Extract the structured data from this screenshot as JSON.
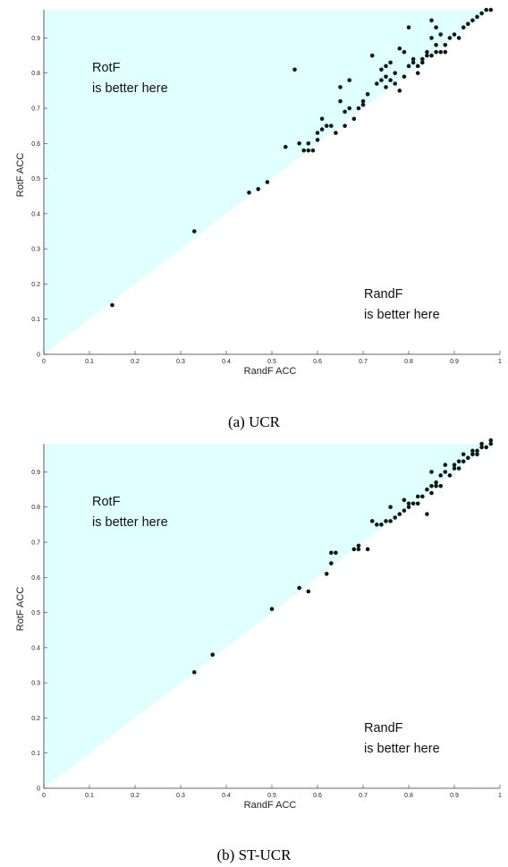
{
  "chart_data": [
    {
      "type": "scatter",
      "caption": "(a) UCR",
      "xlabel": "RandF ACC",
      "ylabel": "RotF ACC",
      "xlim": [
        0,
        1
      ],
      "ylim": [
        0,
        0.98
      ],
      "xticks": [
        "0",
        "0.1",
        "0.2",
        "0.3",
        "0.4",
        "0.5",
        "0.6",
        "0.7",
        "0.8",
        "0.9",
        "1"
      ],
      "yticks": [
        "0",
        "0.1",
        "0.2",
        "0.3",
        "0.4",
        "0.5",
        "0.6",
        "0.7",
        "0.8",
        "0.9"
      ],
      "upper_region_label": [
        "RotF",
        "is better here"
      ],
      "lower_region_label": [
        "RandF",
        "is better here"
      ],
      "shaded_region": "above diagonal",
      "shade_color": "#e0ffff",
      "marker_color": "#0b1a12",
      "grid": false,
      "points": [
        [
          0.15,
          0.14
        ],
        [
          0.33,
          0.35
        ],
        [
          0.45,
          0.46
        ],
        [
          0.47,
          0.47
        ],
        [
          0.49,
          0.49
        ],
        [
          0.53,
          0.59
        ],
        [
          0.55,
          0.81
        ],
        [
          0.56,
          0.6
        ],
        [
          0.57,
          0.58
        ],
        [
          0.58,
          0.58
        ],
        [
          0.58,
          0.6
        ],
        [
          0.59,
          0.58
        ],
        [
          0.6,
          0.61
        ],
        [
          0.6,
          0.63
        ],
        [
          0.61,
          0.64
        ],
        [
          0.61,
          0.67
        ],
        [
          0.62,
          0.65
        ],
        [
          0.63,
          0.65
        ],
        [
          0.64,
          0.63
        ],
        [
          0.65,
          0.76
        ],
        [
          0.65,
          0.72
        ],
        [
          0.66,
          0.69
        ],
        [
          0.66,
          0.65
        ],
        [
          0.67,
          0.78
        ],
        [
          0.67,
          0.7
        ],
        [
          0.68,
          0.67
        ],
        [
          0.69,
          0.7
        ],
        [
          0.7,
          0.72
        ],
        [
          0.7,
          0.71
        ],
        [
          0.71,
          0.74
        ],
        [
          0.72,
          0.85
        ],
        [
          0.73,
          0.77
        ],
        [
          0.74,
          0.81
        ],
        [
          0.74,
          0.78
        ],
        [
          0.75,
          0.76
        ],
        [
          0.75,
          0.79
        ],
        [
          0.75,
          0.82
        ],
        [
          0.76,
          0.83
        ],
        [
          0.76,
          0.78
        ],
        [
          0.77,
          0.77
        ],
        [
          0.77,
          0.8
        ],
        [
          0.78,
          0.75
        ],
        [
          0.78,
          0.87
        ],
        [
          0.79,
          0.79
        ],
        [
          0.79,
          0.86
        ],
        [
          0.8,
          0.93
        ],
        [
          0.8,
          0.82
        ],
        [
          0.81,
          0.83
        ],
        [
          0.81,
          0.84
        ],
        [
          0.82,
          0.8
        ],
        [
          0.82,
          0.82
        ],
        [
          0.83,
          0.84
        ],
        [
          0.83,
          0.83
        ],
        [
          0.84,
          0.86
        ],
        [
          0.84,
          0.85
        ],
        [
          0.85,
          0.85
        ],
        [
          0.85,
          0.9
        ],
        [
          0.85,
          0.95
        ],
        [
          0.86,
          0.93
        ],
        [
          0.86,
          0.88
        ],
        [
          0.86,
          0.86
        ],
        [
          0.87,
          0.91
        ],
        [
          0.87,
          0.86
        ],
        [
          0.88,
          0.86
        ],
        [
          0.88,
          0.88
        ],
        [
          0.89,
          0.9
        ],
        [
          0.9,
          0.91
        ],
        [
          0.91,
          0.9
        ],
        [
          0.92,
          0.93
        ],
        [
          0.93,
          0.94
        ],
        [
          0.94,
          0.95
        ],
        [
          0.95,
          0.96
        ],
        [
          0.96,
          0.97
        ],
        [
          0.97,
          0.98
        ],
        [
          0.98,
          0.98
        ]
      ]
    },
    {
      "type": "scatter",
      "caption": "(b) ST-UCR",
      "xlabel": "RandF ACC",
      "ylabel": "RotF ACC",
      "xlim": [
        0,
        1
      ],
      "ylim": [
        0,
        0.98
      ],
      "xticks": [
        "0",
        "0.1",
        "0.2",
        "0.3",
        "0.4",
        "0.5",
        "0.6",
        "0.7",
        "0.8",
        "0.9",
        "1"
      ],
      "yticks": [
        "0",
        "0.1",
        "0.2",
        "0.3",
        "0.4",
        "0.5",
        "0.6",
        "0.7",
        "0.8",
        "0.9"
      ],
      "upper_region_label": [
        "RotF",
        "is better here"
      ],
      "lower_region_label": [
        "RandF",
        "is better here"
      ],
      "shaded_region": "above diagonal",
      "shade_color": "#e0ffff",
      "marker_color": "#0b1a12",
      "grid": false,
      "points": [
        [
          0.33,
          0.33
        ],
        [
          0.37,
          0.38
        ],
        [
          0.5,
          0.51
        ],
        [
          0.56,
          0.57
        ],
        [
          0.58,
          0.56
        ],
        [
          0.62,
          0.61
        ],
        [
          0.63,
          0.64
        ],
        [
          0.63,
          0.67
        ],
        [
          0.64,
          0.67
        ],
        [
          0.68,
          0.68
        ],
        [
          0.69,
          0.69
        ],
        [
          0.69,
          0.68
        ],
        [
          0.71,
          0.68
        ],
        [
          0.72,
          0.76
        ],
        [
          0.73,
          0.75
        ],
        [
          0.74,
          0.75
        ],
        [
          0.75,
          0.76
        ],
        [
          0.76,
          0.8
        ],
        [
          0.76,
          0.76
        ],
        [
          0.77,
          0.77
        ],
        [
          0.78,
          0.78
        ],
        [
          0.79,
          0.79
        ],
        [
          0.79,
          0.82
        ],
        [
          0.8,
          0.81
        ],
        [
          0.8,
          0.8
        ],
        [
          0.81,
          0.81
        ],
        [
          0.82,
          0.83
        ],
        [
          0.82,
          0.81
        ],
        [
          0.83,
          0.83
        ],
        [
          0.84,
          0.85
        ],
        [
          0.84,
          0.78
        ],
        [
          0.85,
          0.86
        ],
        [
          0.85,
          0.84
        ],
        [
          0.85,
          0.9
        ],
        [
          0.86,
          0.86
        ],
        [
          0.86,
          0.87
        ],
        [
          0.87,
          0.86
        ],
        [
          0.87,
          0.89
        ],
        [
          0.88,
          0.9
        ],
        [
          0.88,
          0.92
        ],
        [
          0.89,
          0.89
        ],
        [
          0.9,
          0.91
        ],
        [
          0.9,
          0.92
        ],
        [
          0.91,
          0.91
        ],
        [
          0.91,
          0.93
        ],
        [
          0.92,
          0.93
        ],
        [
          0.92,
          0.95
        ],
        [
          0.93,
          0.94
        ],
        [
          0.94,
          0.95
        ],
        [
          0.94,
          0.96
        ],
        [
          0.95,
          0.95
        ],
        [
          0.95,
          0.96
        ],
        [
          0.96,
          0.97
        ],
        [
          0.96,
          0.98
        ],
        [
          0.97,
          0.97
        ],
        [
          0.98,
          0.98
        ],
        [
          0.98,
          0.99
        ]
      ]
    }
  ]
}
